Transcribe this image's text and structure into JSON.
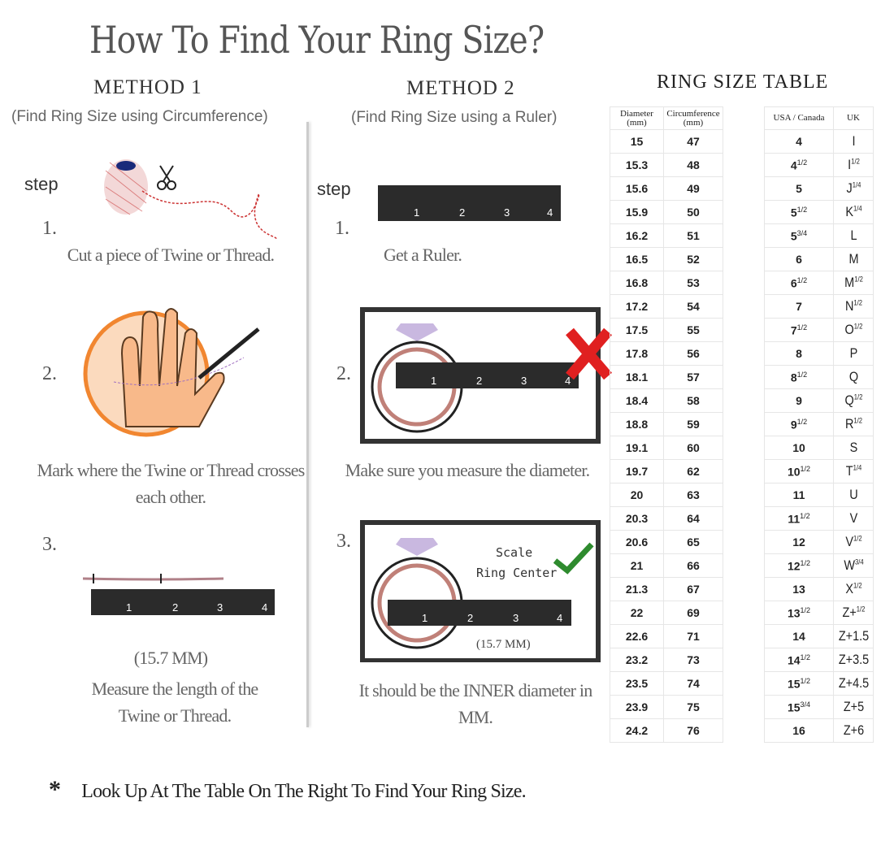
{
  "title": "How To Find Your Ring Size?",
  "method1": {
    "heading": "METHOD 1",
    "subtitle": "(Find Ring Size using Circumference)",
    "step_label": "step",
    "steps": [
      {
        "num": "1.",
        "caption": "Cut a piece of  Twine or Thread."
      },
      {
        "num": "2.",
        "caption": "Mark where the Twine or Thread crosses each other."
      },
      {
        "num": "3.",
        "measure": "(15.7 MM)",
        "caption": "Measure the length of the Twine or Thread."
      }
    ]
  },
  "method2": {
    "heading": "METHOD 2",
    "subtitle": "(Find Ring Size using a Ruler)",
    "step_label": "step",
    "steps": [
      {
        "num": "1.",
        "caption": "Get a Ruler."
      },
      {
        "num": "2.",
        "caption": "Make sure you measure the diameter."
      },
      {
        "num": "3.",
        "scale_text_1": "Scale",
        "scale_text_2": "Ring Center",
        "measure": "(15.7 MM)",
        "caption": "It should be the INNER diameter in MM."
      }
    ]
  },
  "ruler_labels": [
    "1",
    "2",
    "3",
    "4"
  ],
  "table": {
    "heading": "RING SIZE TABLE",
    "headers": [
      "Diameter (mm)",
      "Circumference (mm)",
      "USA / Canada",
      "UK"
    ],
    "rows": [
      [
        "15",
        "47",
        [
          "4",
          ""
        ],
        [
          "I",
          ""
        ]
      ],
      [
        "15.3",
        "48",
        [
          "4",
          "1/2"
        ],
        [
          "I",
          "1/2"
        ]
      ],
      [
        "15.6",
        "49",
        [
          "5",
          ""
        ],
        [
          "J",
          "1/4"
        ]
      ],
      [
        "15.9",
        "50",
        [
          "5",
          "1/2"
        ],
        [
          "K",
          "1/4"
        ]
      ],
      [
        "16.2",
        "51",
        [
          "5",
          "3/4"
        ],
        [
          "L",
          ""
        ]
      ],
      [
        "16.5",
        "52",
        [
          "6",
          ""
        ],
        [
          "M",
          ""
        ]
      ],
      [
        "16.8",
        "53",
        [
          "6",
          "1/2"
        ],
        [
          "M",
          "1/2"
        ]
      ],
      [
        "17.2",
        "54",
        [
          "7",
          ""
        ],
        [
          "N",
          "1/2"
        ]
      ],
      [
        "17.5",
        "55",
        [
          "7",
          "1/2"
        ],
        [
          "O",
          "1/2"
        ]
      ],
      [
        "17.8",
        "56",
        [
          "8",
          ""
        ],
        [
          "P",
          ""
        ]
      ],
      [
        "18.1",
        "57",
        [
          "8",
          "1/2"
        ],
        [
          "Q",
          ""
        ]
      ],
      [
        "18.4",
        "58",
        [
          "9",
          ""
        ],
        [
          "Q",
          "1/2"
        ]
      ],
      [
        "18.8",
        "59",
        [
          "9",
          "1/2"
        ],
        [
          "R",
          "1/2"
        ]
      ],
      [
        "19.1",
        "60",
        [
          "10",
          ""
        ],
        [
          "S",
          ""
        ]
      ],
      [
        "19.7",
        "62",
        [
          "10",
          "1/2"
        ],
        [
          "T",
          "1/4"
        ]
      ],
      [
        "20",
        "63",
        [
          "11",
          ""
        ],
        [
          "U",
          ""
        ]
      ],
      [
        "20.3",
        "64",
        [
          "11",
          "1/2"
        ],
        [
          "V",
          ""
        ]
      ],
      [
        "20.6",
        "65",
        [
          "12",
          ""
        ],
        [
          "V",
          "1/2"
        ]
      ],
      [
        "21",
        "66",
        [
          "12",
          "1/2"
        ],
        [
          "W",
          "3/4"
        ]
      ],
      [
        "21.3",
        "67",
        [
          "13",
          ""
        ],
        [
          "X",
          "1/2"
        ]
      ],
      [
        "22",
        "69",
        [
          "13",
          "1/2"
        ],
        [
          "Z+",
          "1/2"
        ]
      ],
      [
        "22.6",
        "71",
        [
          "14",
          ""
        ],
        [
          "Z+1.5",
          ""
        ]
      ],
      [
        "23.2",
        "73",
        [
          "14",
          "1/2"
        ],
        [
          "Z+3.5",
          ""
        ]
      ],
      [
        "23.5",
        "74",
        [
          "15",
          "1/2"
        ],
        [
          "Z+4.5",
          ""
        ]
      ],
      [
        "23.9",
        "75",
        [
          "15",
          "3/4"
        ],
        [
          "Z+5",
          ""
        ]
      ],
      [
        "24.2",
        "76",
        [
          "16",
          ""
        ],
        [
          "Z+6",
          ""
        ]
      ]
    ]
  },
  "footnote": {
    "bullet": "*",
    "text": "Look Up  At The Table On The Right To Find Your Ring Size."
  },
  "colors": {
    "ruler": "#2b2b2b",
    "circle": "#f07a1a",
    "ring": "#c08078",
    "cross": "#e02020",
    "check": "#2e8b2e",
    "diamond": "#c9b8e0"
  }
}
